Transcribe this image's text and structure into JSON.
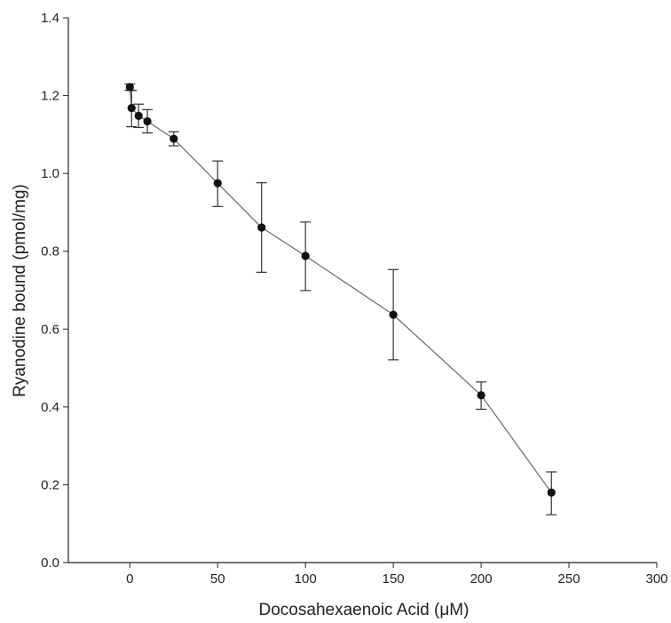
{
  "chart_data": {
    "type": "line",
    "title": "",
    "xlabel": "Docosahexaenoic Acid (μM)",
    "ylabel": "Ryanodine bound (pmol/mg)",
    "xlim": [
      -35,
      300
    ],
    "ylim": [
      0.0,
      1.4
    ],
    "x_ticks": [
      "0",
      "50",
      "100",
      "150",
      "200",
      "250",
      "300"
    ],
    "y_ticks": [
      "0.0",
      "0.2",
      "0.4",
      "0.6",
      "0.8",
      "1.0",
      "1.2",
      "1.4"
    ],
    "grid": false,
    "legend": "none",
    "series": [
      {
        "x": [
          0,
          1,
          5,
          10,
          25,
          50,
          75,
          100,
          150,
          200,
          240
        ],
        "y": [
          1.222,
          1.168,
          1.148,
          1.134,
          1.089,
          0.975,
          0.861,
          0.788,
          0.637,
          0.43,
          0.18
        ],
        "y_err_lower": [
          0.008,
          0.048,
          0.03,
          0.03,
          0.018,
          0.06,
          0.115,
          0.089,
          0.116,
          0.036,
          0.057
        ],
        "y_err_upper": [
          0.008,
          0.045,
          0.03,
          0.03,
          0.018,
          0.057,
          0.115,
          0.087,
          0.116,
          0.034,
          0.053
        ],
        "color": "#111111"
      }
    ]
  }
}
